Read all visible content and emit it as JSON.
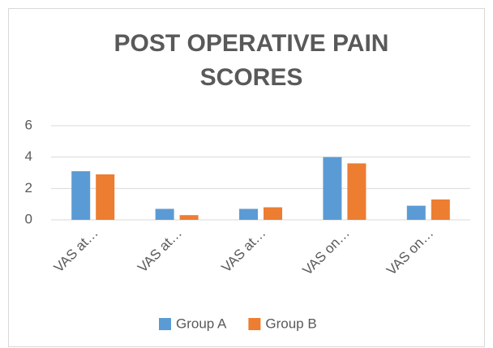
{
  "chart_data": {
    "type": "bar",
    "title": "POST OPERATIVE PAIN SCORES",
    "categories": [
      "VAS at…",
      "VAS at…",
      "VAS at…",
      "VAS on…",
      "VAS on…"
    ],
    "series": [
      {
        "name": "Group A",
        "color": "#5b9bd5",
        "values": [
          3.1,
          0.7,
          0.7,
          4.0,
          0.9
        ]
      },
      {
        "name": "Group B",
        "color": "#ed7d31",
        "values": [
          2.9,
          0.3,
          0.8,
          3.6,
          1.3
        ]
      }
    ],
    "ylim": [
      0,
      6
    ],
    "yticks": [
      0,
      2,
      4,
      6
    ],
    "grid": true,
    "legend": "bottom"
  }
}
